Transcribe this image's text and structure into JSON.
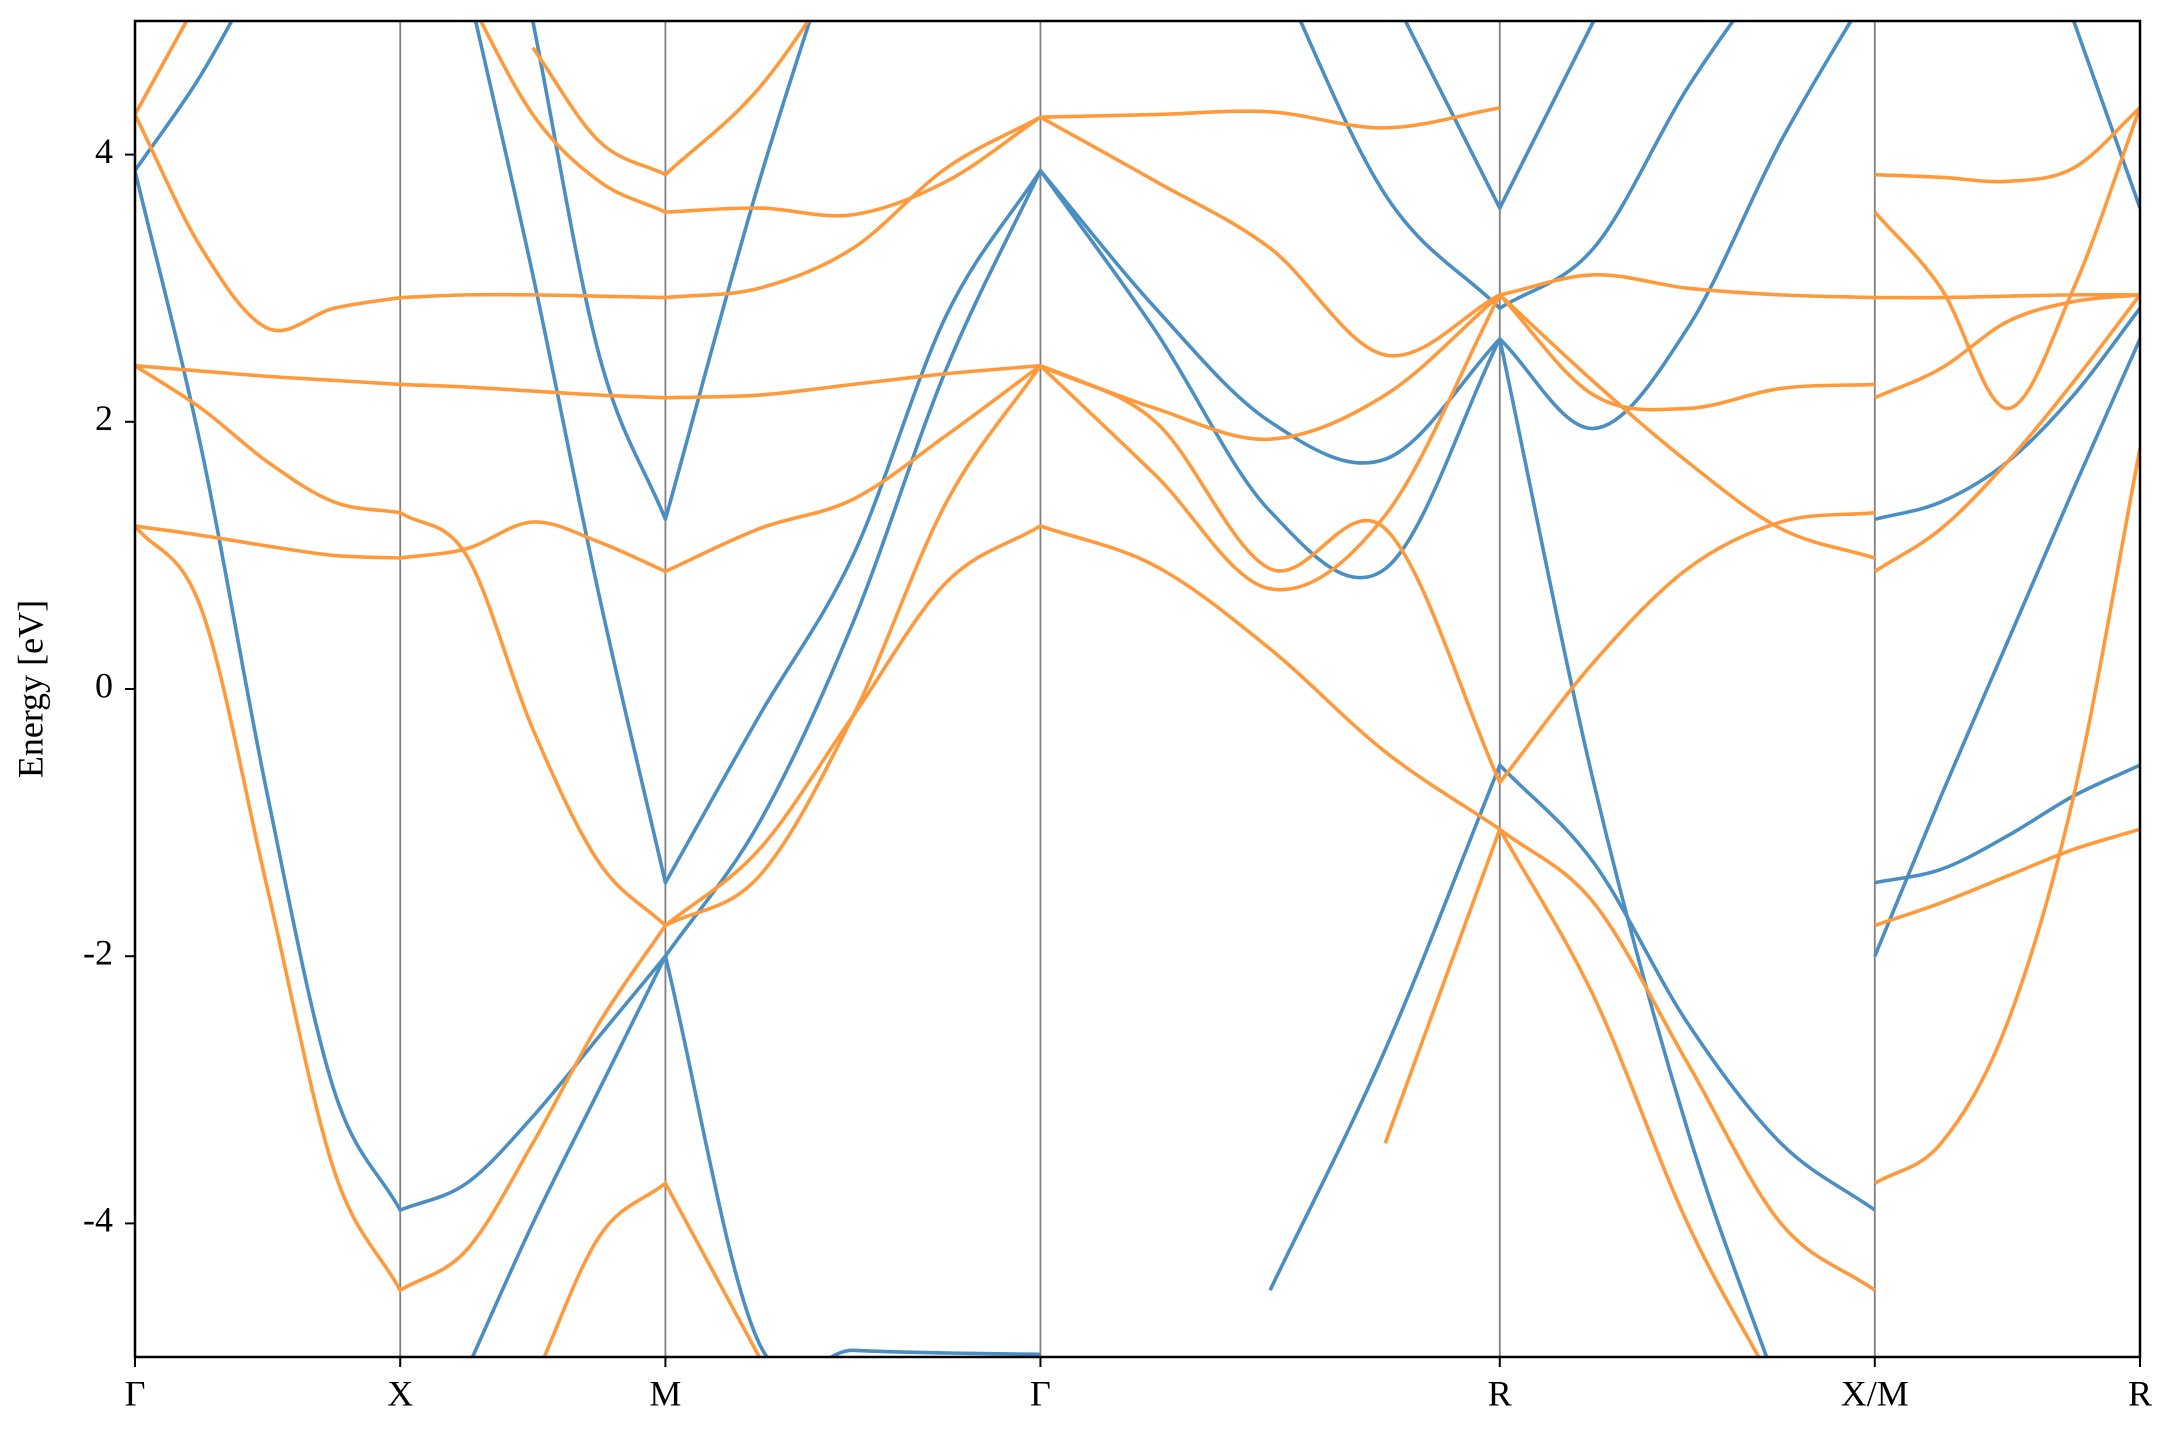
{
  "chart_data": {
    "type": "line",
    "ylabel": "Energy [eV]",
    "x": [
      0,
      0.125,
      0.25,
      0.375,
      0.5,
      0.625,
      0.75,
      0.875,
      1.0,
      1.177,
      1.354,
      1.53,
      1.707,
      1.924,
      2.14,
      2.357,
      2.573,
      2.75,
      2.927,
      3.103,
      3.28,
      3.28,
      3.28,
      3.405,
      3.53,
      3.655,
      3.78
    ],
    "xlim": [
      0,
      3.78
    ],
    "xticks": [
      {
        "value": 0,
        "label": "Γ"
      },
      {
        "value": 0.5,
        "label": "X"
      },
      {
        "value": 1.0,
        "label": "M"
      },
      {
        "value": 1.707,
        "label": "Γ"
      },
      {
        "value": 2.573,
        "label": "R"
      },
      {
        "value": 3.28,
        "label": "X/M"
      },
      {
        "value": 3.78,
        "label": "R"
      }
    ],
    "ylim": [
      -5,
      5
    ],
    "yticks": [
      -4,
      -2,
      0,
      2,
      4
    ],
    "grid": "x",
    "series": [
      {
        "color": "#4b8fc2",
        "values": [
          3.88,
          1.8,
          -0.8,
          -3.0,
          -3.9,
          -3.7,
          -3.2,
          -2.6,
          -2.0,
          -1.0,
          0.5,
          2.4,
          3.88,
          2.68,
          1.33,
          0.9,
          2.62,
          null,
          null,
          null,
          null,
          null,
          -2.0,
          -0.8,
          0.35,
          1.5,
          2.62
        ]
      },
      {
        "color": "#4b8fc2",
        "values": [
          null,
          null,
          null,
          null,
          null,
          5.3,
          3.1,
          0.7,
          -1.45,
          -0.2,
          1.0,
          2.8,
          3.88,
          2.85,
          2.0,
          1.72,
          2.62,
          -0.7,
          -3.3,
          -5.3,
          null,
          null,
          -1.45,
          -1.35,
          -1.1,
          -0.8,
          -0.57
        ]
      },
      {
        "color": "#4b8fc2",
        "values": [
          null,
          null,
          null,
          null,
          null,
          -5.1,
          -4.0,
          -3.0,
          -2.0,
          -4.9,
          -4.95,
          -4.97,
          -4.98,
          null,
          null,
          null,
          null,
          null,
          null,
          null,
          null,
          null,
          null,
          null,
          null,
          null,
          null
        ]
      },
      {
        "color": "#4b8fc2",
        "values": [
          null,
          null,
          null,
          null,
          null,
          null,
          null,
          null,
          null,
          null,
          null,
          null,
          null,
          null,
          -4.5,
          -2.7,
          -0.57,
          -1.3,
          -2.5,
          -3.4,
          -3.9,
          null,
          null,
          null,
          null,
          null,
          null
        ]
      },
      {
        "color": "#4b8fc2",
        "values": [
          null,
          null,
          null,
          null,
          null,
          null,
          null,
          null,
          null,
          null,
          null,
          null,
          null,
          null,
          null,
          5.3,
          3.6,
          5.0,
          null,
          null,
          null,
          null,
          null,
          null,
          null,
          5.0,
          3.6
        ]
      },
      {
        "color": "#4b8fc2",
        "values": [
          null,
          null,
          null,
          null,
          null,
          null,
          null,
          null,
          null,
          null,
          null,
          null,
          null,
          null,
          null,
          null,
          2.62,
          1.95,
          2.7,
          4.1,
          5.3,
          null,
          null,
          null,
          null,
          null,
          null
        ]
      },
      {
        "color": "#4b8fc2",
        "values": [
          null,
          null,
          null,
          null,
          null,
          null,
          null,
          null,
          null,
          null,
          null,
          null,
          null,
          null,
          5.5,
          3.7,
          2.85,
          3.3,
          4.5,
          5.5,
          null,
          null,
          null,
          null,
          null,
          null,
          null
        ]
      },
      {
        "color": "#4b8fc2",
        "values": [
          3.88,
          4.6,
          5.5,
          null,
          null,
          null,
          null,
          null,
          null,
          null,
          null,
          null,
          null,
          null,
          null,
          null,
          null,
          null,
          null,
          null,
          null,
          null,
          null,
          null,
          null,
          null,
          null
        ]
      },
      {
        "color": "#4b8fc2",
        "values": [
          null,
          null,
          null,
          null,
          null,
          null,
          5.0,
          2.5,
          1.27,
          3.8,
          6.0,
          null,
          null,
          null,
          null,
          null,
          null,
          null,
          null,
          null,
          null,
          null,
          1.27,
          1.4,
          1.7,
          2.2,
          2.85
        ]
      },
      {
        "color": "#ff9a3c",
        "values": [
          1.22,
          0.6,
          -1.5,
          -3.6,
          -4.5,
          -4.2,
          -3.4,
          -2.5,
          -1.77,
          -1.2,
          -0.2,
          0.8,
          1.22,
          0.92,
          0.3,
          -0.47,
          -1.05,
          -1.6,
          -2.8,
          -4.0,
          -4.5,
          null,
          -1.77,
          -1.6,
          -1.4,
          -1.2,
          -1.05
        ]
      },
      {
        "color": "#ff9a3c",
        "values": [
          2.42,
          2.1,
          1.7,
          1.4,
          1.32,
          1.0,
          -0.3,
          -1.3,
          -1.77,
          -1.4,
          -0.2,
          1.4,
          2.42,
          2.0,
          0.9,
          1.2,
          -0.7,
          0.2,
          0.9,
          1.25,
          1.32,
          null,
          -3.7,
          -3.4,
          -2.5,
          -0.8,
          1.8
        ]
      },
      {
        "color": "#ff9a3c",
        "values": [
          2.42,
          2.38,
          2.34,
          2.31,
          2.28,
          2.26,
          2.23,
          2.2,
          2.18,
          2.2,
          2.28,
          2.36,
          2.42,
          2.1,
          1.87,
          2.2,
          2.95,
          2.2,
          2.1,
          2.25,
          2.28,
          null,
          2.18,
          2.4,
          2.75,
          2.9,
          2.95
        ]
      },
      {
        "color": "#ff9a3c",
        "values": [
          4.3,
          3.3,
          2.7,
          2.85,
          2.93,
          2.95,
          2.95,
          2.94,
          2.93,
          3.0,
          3.3,
          3.9,
          4.28,
          3.8,
          3.3,
          2.5,
          2.95,
          3.1,
          3.0,
          2.95,
          2.93,
          null,
          2.93,
          2.93,
          2.94,
          2.95,
          2.95
        ]
      },
      {
        "color": "#ff9a3c",
        "values": [
          1.22,
          1.15,
          1.07,
          1.0,
          0.98,
          1.05,
          1.25,
          1.1,
          0.88,
          1.2,
          1.42,
          1.9,
          2.42,
          1.6,
          0.75,
          1.3,
          2.95,
          2.3,
          1.7,
          1.2,
          0.98,
          null,
          0.88,
          1.2,
          1.7,
          2.3,
          2.95
        ]
      },
      {
        "color": "#ff9a3c",
        "values": [
          4.3,
          5.2,
          null,
          null,
          null,
          null,
          4.8,
          4.1,
          3.85,
          4.5,
          5.5,
          null,
          null,
          null,
          null,
          null,
          null,
          null,
          null,
          null,
          null,
          null,
          3.85,
          3.83,
          3.8,
          3.9,
          4.35
        ]
      },
      {
        "color": "#ff9a3c",
        "values": [
          null,
          null,
          null,
          null,
          null,
          5.2,
          4.3,
          3.8,
          3.57,
          3.6,
          3.55,
          3.8,
          4.28,
          4.3,
          4.32,
          4.2,
          4.35,
          null,
          null,
          null,
          null,
          null,
          3.57,
          3.0,
          2.1,
          3.0,
          4.35
        ]
      },
      {
        "color": "#ff9a3c",
        "values": [
          null,
          null,
          null,
          null,
          null,
          null,
          -5.2,
          -4.1,
          -3.7,
          -5.0,
          null,
          null,
          null,
          null,
          null,
          -3.4,
          -1.05,
          -2.3,
          -4.0,
          -5.3,
          null,
          null,
          null,
          null,
          null,
          null,
          null
        ]
      }
    ]
  }
}
